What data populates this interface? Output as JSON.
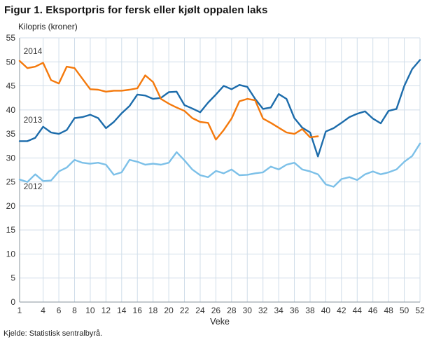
{
  "page": {
    "title": "Figur 1. Eksportpris for fersk eller kjølt oppalen laks",
    "y_axis_unit": "Kilopris (kroner)",
    "source": "Kjelde: Statistisk sentralbyrå."
  },
  "chart_data": {
    "type": "line",
    "title": "Figur 1. Eksportpris for fersk eller kjølt oppalen laks",
    "ylabel": "Kilopris (kroner)",
    "xlabel": "Veke",
    "ylim": [
      0,
      55
    ],
    "xlim": [
      1,
      52
    ],
    "y_ticks": [
      0,
      5,
      10,
      15,
      20,
      25,
      30,
      35,
      40,
      45,
      50,
      55
    ],
    "x_ticks": [
      1,
      4,
      6,
      8,
      10,
      12,
      14,
      16,
      18,
      20,
      22,
      24,
      26,
      28,
      30,
      32,
      34,
      36,
      38,
      40,
      42,
      44,
      46,
      48,
      50,
      52
    ],
    "grid": true,
    "legend_position": "inline-annotations",
    "colors": {
      "grid": "#d0dde9",
      "axis": "#8a949c",
      "series_2012": "#7cc0e8",
      "series_2013": "#1c6cab",
      "series_2014": "#f4790c"
    },
    "series": [
      {
        "name": "2012",
        "color_key": "series_2012",
        "start_week": 1,
        "values": [
          25.5,
          25.0,
          26.6,
          25.2,
          25.3,
          27.2,
          28.0,
          29.6,
          29.0,
          28.8,
          29.0,
          28.6,
          26.5,
          27.0,
          29.6,
          29.2,
          28.6,
          28.8,
          28.6,
          29.0,
          31.2,
          29.5,
          27.6,
          26.4,
          26.0,
          27.3,
          26.8,
          27.6,
          26.4,
          26.5,
          26.8,
          27.0,
          28.2,
          27.6,
          28.6,
          29.0,
          27.6,
          27.2,
          26.6,
          24.5,
          24.0,
          25.6,
          26.0,
          25.4,
          26.6,
          27.2,
          26.6,
          27.0,
          27.6,
          29.2,
          30.4,
          33.0
        ]
      },
      {
        "name": "2013",
        "color_key": "series_2013",
        "start_week": 1,
        "values": [
          33.5,
          33.5,
          34.2,
          36.5,
          35.3,
          35.0,
          35.8,
          38.3,
          38.5,
          39.0,
          38.3,
          36.2,
          37.5,
          39.3,
          40.8,
          43.2,
          43.0,
          42.3,
          42.5,
          43.7,
          43.8,
          41.0,
          40.3,
          39.5,
          41.5,
          43.2,
          45.0,
          44.3,
          45.2,
          44.8,
          42.3,
          40.2,
          40.5,
          43.3,
          42.3,
          38.3,
          36.3,
          35.3,
          30.3,
          35.5,
          36.2,
          37.3,
          38.5,
          39.2,
          39.7,
          38.2,
          37.2,
          39.8,
          40.2,
          45.0,
          48.5,
          50.4
        ]
      },
      {
        "name": "2014",
        "color_key": "series_2014",
        "start_week": 1,
        "values": [
          50.2,
          48.7,
          49.0,
          49.8,
          46.2,
          45.5,
          49.0,
          48.7,
          46.5,
          44.3,
          44.2,
          43.8,
          44.0,
          44.0,
          44.2,
          44.5,
          47.2,
          45.8,
          42.3,
          41.3,
          40.5,
          39.8,
          38.3,
          37.5,
          37.3,
          33.8,
          35.8,
          38.2,
          41.8,
          42.3,
          42.0,
          38.2,
          37.3,
          36.3,
          35.3,
          35.0,
          36.0,
          34.3,
          34.5
        ]
      }
    ],
    "annotations": [
      {
        "text": "2014",
        "week": 1.5,
        "value": 52.2
      },
      {
        "text": "2013",
        "week": 1.5,
        "value": 37.9
      },
      {
        "text": "2012",
        "week": 1.5,
        "value": 24.1
      }
    ]
  }
}
